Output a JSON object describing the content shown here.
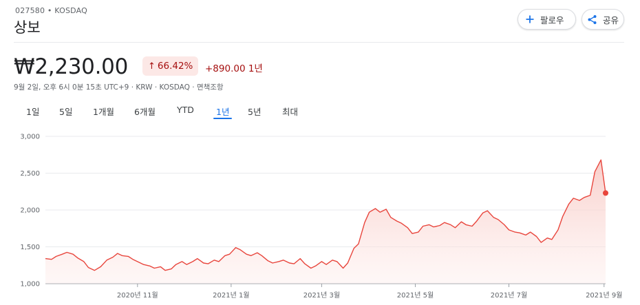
{
  "header": {
    "ticker": "027580 • KOSDAQ",
    "name": "상보",
    "follow_label": "팔로우",
    "share_label": "공유",
    "follow_icon": "plus-icon",
    "share_icon": "share-icon"
  },
  "quote": {
    "price": "₩2,230.00",
    "percent_change": "66.42%",
    "change": "+890.00 1년",
    "meta": "9월 2일, 오후 6시 0분 15초 UTC+9 · KRW · KOSDAQ · 면책조항"
  },
  "tabs": [
    {
      "label": "1일"
    },
    {
      "label": "5일"
    },
    {
      "label": "1개월"
    },
    {
      "label": "6개월"
    },
    {
      "label": "YTD"
    },
    {
      "label": "1년",
      "active": true
    },
    {
      "label": "5년"
    },
    {
      "label": "최대"
    }
  ],
  "colors": {
    "line": "#e8453c",
    "fill": "#fde6e4",
    "accent": "#1a73e8",
    "negative_text": "#a50e0e",
    "badge_bg": "#fce8e6"
  },
  "chart_data": {
    "type": "area",
    "x_start": "2020-09-02",
    "x_end": "2021-09-02",
    "x_ticks": [
      {
        "date": "2020-11-01",
        "label": "2020년 11월"
      },
      {
        "date": "2021-01-01",
        "label": "2021년 1월"
      },
      {
        "date": "2021-03-01",
        "label": "2021년 3월"
      },
      {
        "date": "2021-05-01",
        "label": "2021년 5월"
      },
      {
        "date": "2021-07-01",
        "label": "2021년 7월"
      },
      {
        "date": "2021-09-01",
        "label": "2021년 9월"
      }
    ],
    "y_ticks": [
      1000,
      1500,
      2000,
      2500,
      3000
    ],
    "y_tick_labels": [
      "1,000",
      "1,500",
      "2,000",
      "2,500",
      "3,000"
    ],
    "ylim": [
      1000,
      3000
    ],
    "grid": true,
    "last_value": 2230,
    "points": [
      [
        "2020-09-02",
        1340
      ],
      [
        "2020-09-06",
        1330
      ],
      [
        "2020-09-09",
        1370
      ],
      [
        "2020-09-13",
        1400
      ],
      [
        "2020-09-16",
        1425
      ],
      [
        "2020-09-20",
        1400
      ],
      [
        "2020-09-23",
        1350
      ],
      [
        "2020-09-27",
        1300
      ],
      [
        "2020-09-30",
        1220
      ],
      [
        "2020-10-04",
        1180
      ],
      [
        "2020-10-08",
        1230
      ],
      [
        "2020-10-12",
        1320
      ],
      [
        "2020-10-16",
        1360
      ],
      [
        "2020-10-19",
        1410
      ],
      [
        "2020-10-22",
        1380
      ],
      [
        "2020-10-26",
        1370
      ],
      [
        "2020-10-29",
        1330
      ],
      [
        "2020-11-02",
        1290
      ],
      [
        "2020-11-05",
        1260
      ],
      [
        "2020-11-09",
        1240
      ],
      [
        "2020-11-12",
        1210
      ],
      [
        "2020-11-16",
        1230
      ],
      [
        "2020-11-19",
        1180
      ],
      [
        "2020-11-23",
        1200
      ],
      [
        "2020-11-26",
        1260
      ],
      [
        "2020-11-30",
        1300
      ],
      [
        "2020-12-03",
        1260
      ],
      [
        "2020-12-07",
        1300
      ],
      [
        "2020-12-10",
        1340
      ],
      [
        "2020-12-14",
        1280
      ],
      [
        "2020-12-17",
        1270
      ],
      [
        "2020-12-21",
        1320
      ],
      [
        "2020-12-24",
        1300
      ],
      [
        "2020-12-28",
        1380
      ],
      [
        "2020-12-31",
        1400
      ],
      [
        "2021-01-04",
        1490
      ],
      [
        "2021-01-07",
        1460
      ],
      [
        "2021-01-11",
        1400
      ],
      [
        "2021-01-14",
        1380
      ],
      [
        "2021-01-18",
        1420
      ],
      [
        "2021-01-21",
        1380
      ],
      [
        "2021-01-25",
        1310
      ],
      [
        "2021-01-28",
        1280
      ],
      [
        "2021-02-01",
        1300
      ],
      [
        "2021-02-04",
        1320
      ],
      [
        "2021-02-08",
        1280
      ],
      [
        "2021-02-11",
        1270
      ],
      [
        "2021-02-15",
        1340
      ],
      [
        "2021-02-18",
        1270
      ],
      [
        "2021-02-22",
        1210
      ],
      [
        "2021-02-25",
        1240
      ],
      [
        "2021-03-01",
        1300
      ],
      [
        "2021-03-04",
        1260
      ],
      [
        "2021-03-08",
        1320
      ],
      [
        "2021-03-11",
        1300
      ],
      [
        "2021-03-15",
        1210
      ],
      [
        "2021-03-18",
        1280
      ],
      [
        "2021-03-22",
        1480
      ],
      [
        "2021-03-25",
        1540
      ],
      [
        "2021-03-29",
        1830
      ],
      [
        "2021-04-01",
        1970
      ],
      [
        "2021-04-05",
        2020
      ],
      [
        "2021-04-08",
        1970
      ],
      [
        "2021-04-12",
        2010
      ],
      [
        "2021-04-15",
        1900
      ],
      [
        "2021-04-19",
        1850
      ],
      [
        "2021-04-22",
        1820
      ],
      [
        "2021-04-26",
        1760
      ],
      [
        "2021-04-29",
        1680
      ],
      [
        "2021-05-03",
        1700
      ],
      [
        "2021-05-06",
        1780
      ],
      [
        "2021-05-10",
        1800
      ],
      [
        "2021-05-13",
        1770
      ],
      [
        "2021-05-17",
        1790
      ],
      [
        "2021-05-20",
        1830
      ],
      [
        "2021-05-24",
        1800
      ],
      [
        "2021-05-27",
        1760
      ],
      [
        "2021-05-31",
        1840
      ],
      [
        "2021-06-03",
        1800
      ],
      [
        "2021-06-07",
        1780
      ],
      [
        "2021-06-10",
        1850
      ],
      [
        "2021-06-14",
        1960
      ],
      [
        "2021-06-17",
        1990
      ],
      [
        "2021-06-21",
        1900
      ],
      [
        "2021-06-24",
        1870
      ],
      [
        "2021-06-28",
        1800
      ],
      [
        "2021-07-01",
        1730
      ],
      [
        "2021-07-05",
        1700
      ],
      [
        "2021-07-08",
        1690
      ],
      [
        "2021-07-12",
        1660
      ],
      [
        "2021-07-15",
        1700
      ],
      [
        "2021-07-19",
        1640
      ],
      [
        "2021-07-22",
        1560
      ],
      [
        "2021-07-26",
        1620
      ],
      [
        "2021-07-29",
        1600
      ],
      [
        "2021-08-02",
        1730
      ],
      [
        "2021-08-05",
        1910
      ],
      [
        "2021-08-09",
        2080
      ],
      [
        "2021-08-12",
        2160
      ],
      [
        "2021-08-16",
        2130
      ],
      [
        "2021-08-19",
        2170
      ],
      [
        "2021-08-23",
        2200
      ],
      [
        "2021-08-26",
        2520
      ],
      [
        "2021-08-30",
        2680
      ],
      [
        "2021-09-02",
        2230
      ]
    ]
  }
}
